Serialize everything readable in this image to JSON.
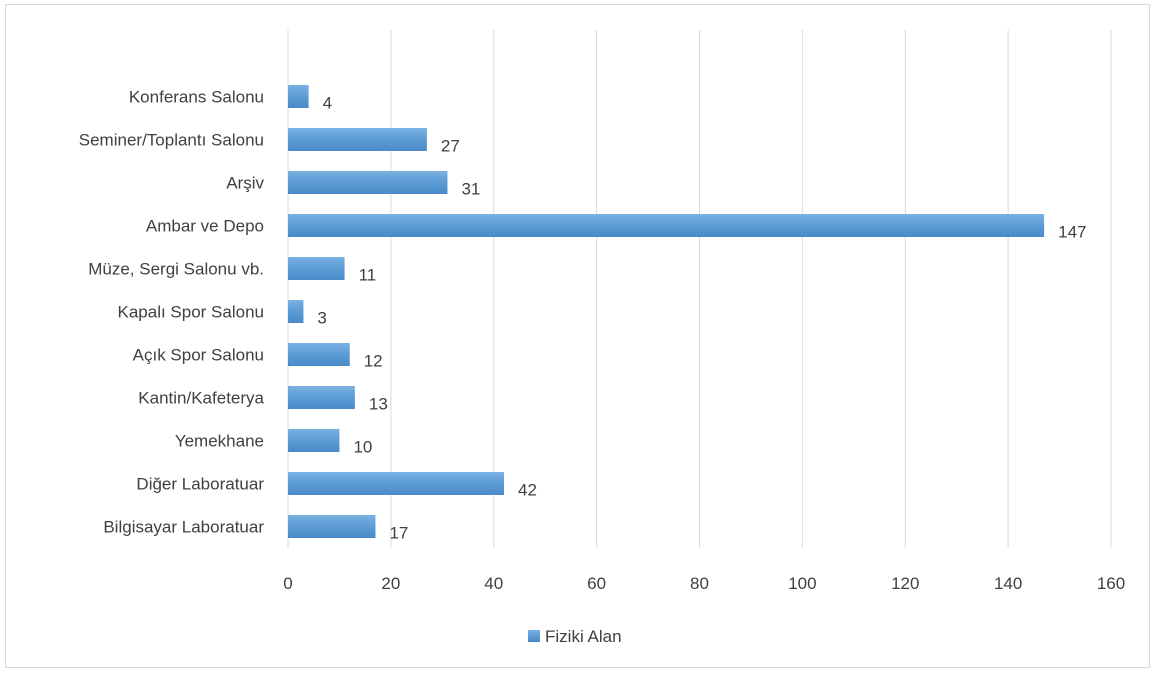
{
  "chart_data": {
    "type": "bar",
    "orientation": "horizontal",
    "categories": [
      "Konferans Salonu",
      "Seminer/Toplantı Salonu",
      "Arşiv",
      "Ambar ve Depo",
      "Müze, Sergi Salonu vb.",
      "Kapalı Spor Salonu",
      "Açık Spor Salonu",
      "Kantin/Kafeterya",
      "Yemekhane",
      "Diğer Laboratuar",
      "Bilgisayar Laboratuar"
    ],
    "series": [
      {
        "name": "Fiziki Alan",
        "values": [
          4,
          27,
          31,
          147,
          11,
          3,
          12,
          13,
          10,
          42,
          17
        ],
        "color": "#5b9bd5"
      }
    ],
    "xlim": [
      0,
      160
    ],
    "xticks": [
      0,
      20,
      40,
      60,
      80,
      100,
      120,
      140,
      160
    ],
    "grid": true,
    "legend": "bottom",
    "data_labels": true
  }
}
